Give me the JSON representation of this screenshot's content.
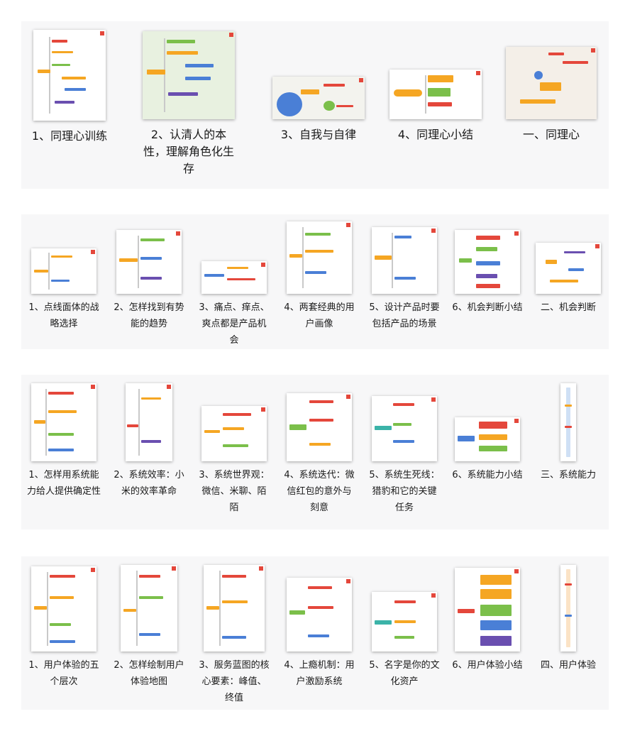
{
  "sections": [
    {
      "id": "empathy",
      "items": [
        {
          "label": "1、同理心训练"
        },
        {
          "label": "2、认清人的本性，理解角色化生存"
        },
        {
          "label": "3、自我与自律"
        },
        {
          "label": "4、同理心小结"
        },
        {
          "label": "一、同理心"
        }
      ]
    },
    {
      "id": "opportunity",
      "items": [
        {
          "label": "1、点线面体的战略选择"
        },
        {
          "label": "2、怎样找到有势能的趋势"
        },
        {
          "label": "3、痛点、痒点、爽点都是产品机会"
        },
        {
          "label": "4、两套经典的用户画像"
        },
        {
          "label": "5、设计产品时要包括产品的场景"
        },
        {
          "label": "6、机会判断小结"
        },
        {
          "label": "二、机会判断"
        }
      ]
    },
    {
      "id": "system",
      "items": [
        {
          "label": "1、怎样用系统能力给人提供确定性"
        },
        {
          "label": "2、系统效率：小米的效率革命"
        },
        {
          "label": "3、系统世界观：微信、米聊、陌陌"
        },
        {
          "label": "4、系统迭代：微信红包的意外与刻意"
        },
        {
          "label": "5、系统生死线：猎豹和它的关键任务"
        },
        {
          "label": "6、系统能力小结"
        },
        {
          "label": "三、系统能力"
        }
      ]
    },
    {
      "id": "ux",
      "items": [
        {
          "label": "1、用户体验的五个层次"
        },
        {
          "label": "2、怎样绘制用户体验地图"
        },
        {
          "label": "3、服务蓝图的核心要素：峰值、终值"
        },
        {
          "label": "4、上瘾机制：用户激励系统"
        },
        {
          "label": "5、名字是你的文化资产"
        },
        {
          "label": "6、用户体验小结"
        },
        {
          "label": "四、用户体验"
        }
      ]
    }
  ],
  "colors": {
    "orange": "#f5a623",
    "red": "#e4473b",
    "green": "#7bbf4a",
    "blue": "#4a7fd6",
    "purple": "#6a4fb0",
    "teal": "#3bb3a8"
  }
}
